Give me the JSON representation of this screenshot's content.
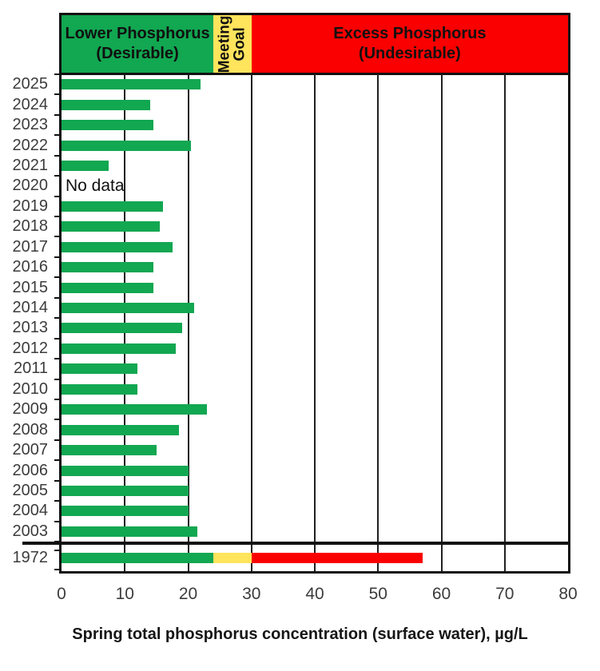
{
  "colors": {
    "bar_green": "#12A751",
    "goal_yellow": "#FFE45C",
    "excess_red": "#FA0000",
    "grid_black": "#202020",
    "label_gray": "#3c3c3c"
  },
  "header": {
    "green_zone": {
      "line1": "Lower Phosphorus",
      "line2": "(Desirable)"
    },
    "goal_zone": {
      "line1": "Meeting",
      "line2": "Goal"
    },
    "red_zone": {
      "line1": "Excess Phosphorus",
      "line2": "(Undesirable)"
    }
  },
  "chart_data": {
    "type": "bar",
    "orientation": "horizontal",
    "xlabel": "Spring total phosphorus concentration (surface water), µg/L",
    "xlim": [
      0,
      80
    ],
    "x_ticks": [
      0,
      10,
      20,
      30,
      40,
      50,
      60,
      70,
      80
    ],
    "grid": "on",
    "zones": [
      {
        "label": "Lower Phosphorus (Desirable)",
        "range": [
          0,
          24
        ],
        "color": "#12A751"
      },
      {
        "label": "Meeting Goal",
        "range": [
          24,
          30
        ],
        "color": "#FFE45C"
      },
      {
        "label": "Excess Phosphorus (Undesirable)",
        "range": [
          30,
          80
        ],
        "color": "#FA0000"
      }
    ],
    "rows": [
      {
        "year": "2025",
        "value": 22
      },
      {
        "year": "2024",
        "value": 14
      },
      {
        "year": "2023",
        "value": 14.5
      },
      {
        "year": "2022",
        "value": 20.5
      },
      {
        "year": "2021",
        "value": 7.5
      },
      {
        "year": "2020",
        "value": null,
        "note": "No data"
      },
      {
        "year": "2019",
        "value": 16
      },
      {
        "year": "2018",
        "value": 15.5
      },
      {
        "year": "2017",
        "value": 17.5
      },
      {
        "year": "2016",
        "value": 14.5
      },
      {
        "year": "2015",
        "value": 14.5
      },
      {
        "year": "2014",
        "value": 21
      },
      {
        "year": "2013",
        "value": 19
      },
      {
        "year": "2012",
        "value": 18
      },
      {
        "year": "2011",
        "value": 12
      },
      {
        "year": "2010",
        "value": 12
      },
      {
        "year": "2009",
        "value": 23
      },
      {
        "year": "2008",
        "value": 18.5
      },
      {
        "year": "2007",
        "value": 15
      },
      {
        "year": "2006",
        "value": 20
      },
      {
        "year": "2005",
        "value": 20
      },
      {
        "year": "2004",
        "value": 20
      },
      {
        "year": "2003",
        "value": 21.5
      }
    ],
    "historic": {
      "year": "1972",
      "total": 57,
      "segments": [
        {
          "zone": "desirable",
          "from": 0,
          "to": 24,
          "color": "#12A751"
        },
        {
          "zone": "meeting-goal",
          "from": 24,
          "to": 30,
          "color": "#FFE45C"
        },
        {
          "zone": "excess",
          "from": 30,
          "to": 57,
          "color": "#FA0000"
        }
      ]
    }
  }
}
